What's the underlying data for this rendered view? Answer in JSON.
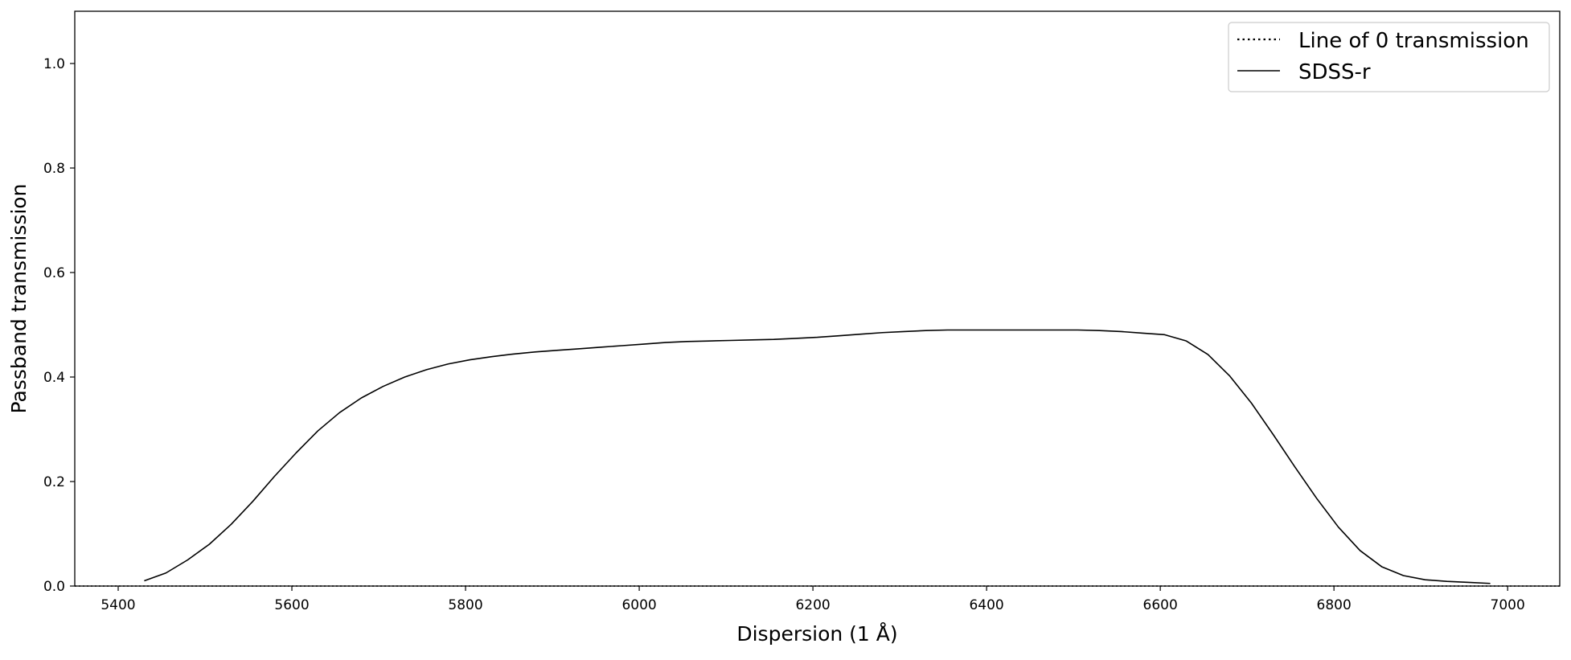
{
  "chart_data": {
    "type": "line",
    "title": "",
    "xlabel": "Dispersion (1 Å)",
    "ylabel": "Passband transmission",
    "xlim": [
      5350,
      7060
    ],
    "ylim": [
      0.0,
      1.1
    ],
    "xticks": [
      5400,
      5600,
      5800,
      6000,
      6200,
      6400,
      6600,
      6800,
      7000
    ],
    "yticks": [
      0.0,
      0.2,
      0.4,
      0.6,
      0.8,
      1.0
    ],
    "xtick_labels": [
      "5400",
      "5600",
      "5800",
      "6000",
      "6200",
      "6400",
      "6600",
      "6800",
      "7000"
    ],
    "ytick_labels": [
      "0.0",
      "0.2",
      "0.4",
      "0.6",
      "0.8",
      "1.0"
    ],
    "grid": false,
    "legend_position": "top-right",
    "series": [
      {
        "name": "Line of 0 transmission",
        "style": "dotted",
        "color": "#000000",
        "x": [
          5350,
          7060
        ],
        "y": [
          0.0,
          0.0
        ]
      },
      {
        "name": "SDSS-r",
        "style": "solid",
        "color": "#000000",
        "x": [
          5430,
          5455,
          5480,
          5505,
          5530,
          5555,
          5580,
          5605,
          5630,
          5655,
          5680,
          5705,
          5730,
          5755,
          5780,
          5805,
          5830,
          5855,
          5880,
          5905,
          5930,
          5955,
          5980,
          6005,
          6030,
          6055,
          6080,
          6105,
          6130,
          6155,
          6180,
          6205,
          6230,
          6255,
          6280,
          6305,
          6330,
          6355,
          6380,
          6405,
          6430,
          6455,
          6480,
          6505,
          6530,
          6555,
          6580,
          6605,
          6630,
          6655,
          6680,
          6705,
          6730,
          6755,
          6780,
          6805,
          6830,
          6855,
          6880,
          6905,
          6930,
          6955,
          6980
        ],
        "y": [
          0.01,
          0.025,
          0.05,
          0.08,
          0.118,
          0.162,
          0.21,
          0.255,
          0.297,
          0.332,
          0.36,
          0.382,
          0.4,
          0.414,
          0.425,
          0.433,
          0.439,
          0.444,
          0.448,
          0.451,
          0.454,
          0.457,
          0.46,
          0.463,
          0.466,
          0.468,
          0.469,
          0.47,
          0.471,
          0.472,
          0.474,
          0.476,
          0.479,
          0.482,
          0.485,
          0.487,
          0.489,
          0.49,
          0.49,
          0.49,
          0.49,
          0.49,
          0.49,
          0.49,
          0.489,
          0.487,
          0.484,
          0.481,
          0.469,
          0.443,
          0.402,
          0.35,
          0.29,
          0.228,
          0.168,
          0.113,
          0.068,
          0.037,
          0.02,
          0.012,
          0.009,
          0.007,
          0.005
        ]
      }
    ]
  }
}
